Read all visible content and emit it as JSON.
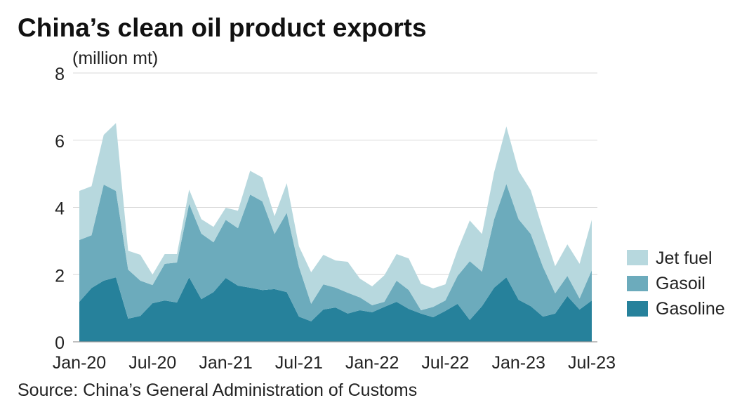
{
  "chart_data": {
    "type": "area",
    "stacked": true,
    "title": "China’s clean oil product exports",
    "ylabel": "(million mt)",
    "xlabel": "",
    "source": "Source: China’s General Administration of Customs",
    "ylim": [
      0,
      8
    ],
    "yticks": [
      0,
      2,
      4,
      6,
      8
    ],
    "xlim": [
      0,
      42
    ],
    "x_ticks": [
      {
        "label": "Jan-20",
        "month": 0
      },
      {
        "label": "Jul-20",
        "month": 6
      },
      {
        "label": "Jan-21",
        "month": 12
      },
      {
        "label": "Jul-21",
        "month": 18
      },
      {
        "label": "Jan-22",
        "month": 24
      },
      {
        "label": "Jul-22",
        "month": 30
      },
      {
        "label": "Jan-23",
        "month": 36
      },
      {
        "label": "Jul-23",
        "month": 42
      }
    ],
    "grid": true,
    "legend": {
      "position": "right"
    },
    "series": [
      {
        "name": "Gasoline",
        "color": "#26819b",
        "values": [
          1.19,
          1.6,
          1.82,
          1.92,
          0.69,
          0.77,
          1.15,
          1.23,
          1.17,
          1.92,
          1.27,
          1.48,
          1.9,
          1.67,
          1.61,
          1.54,
          1.57,
          1.48,
          0.75,
          0.61,
          0.96,
          1.02,
          0.84,
          0.94,
          0.88,
          1.04,
          1.19,
          0.98,
          0.84,
          0.73,
          0.92,
          1.13,
          0.65,
          1.06,
          1.61,
          1.92,
          1.25,
          1.06,
          0.75,
          0.84,
          1.36,
          0.96,
          1.23
        ]
      },
      {
        "name": "Gasoil",
        "color": "#6cabbc",
        "values": [
          1.84,
          1.57,
          2.86,
          2.57,
          1.46,
          1.05,
          0.54,
          1.09,
          1.19,
          2.19,
          1.95,
          1.48,
          1.73,
          1.71,
          2.77,
          2.64,
          1.64,
          2.36,
          1.48,
          0.52,
          0.75,
          0.59,
          0.62,
          0.38,
          0.21,
          0.15,
          0.63,
          0.56,
          0.1,
          0.31,
          0.31,
          0.83,
          1.75,
          1.03,
          2.04,
          2.78,
          2.4,
          2.15,
          1.48,
          0.6,
          0.6,
          0.33,
          0.9
        ]
      },
      {
        "name": "Jet fuel",
        "color": "#b7d8de",
        "values": [
          1.46,
          1.46,
          1.48,
          2.02,
          0.56,
          0.77,
          0.31,
          0.29,
          0.25,
          0.42,
          0.43,
          0.46,
          0.36,
          0.52,
          0.71,
          0.71,
          0.53,
          0.88,
          0.61,
          0.94,
          0.88,
          0.81,
          0.92,
          0.56,
          0.56,
          0.79,
          0.79,
          0.94,
          0.79,
          0.55,
          0.48,
          0.77,
          1.21,
          1.12,
          1.4,
          1.71,
          1.44,
          1.3,
          1.11,
          0.81,
          0.94,
          1.03,
          1.5
        ]
      }
    ]
  }
}
